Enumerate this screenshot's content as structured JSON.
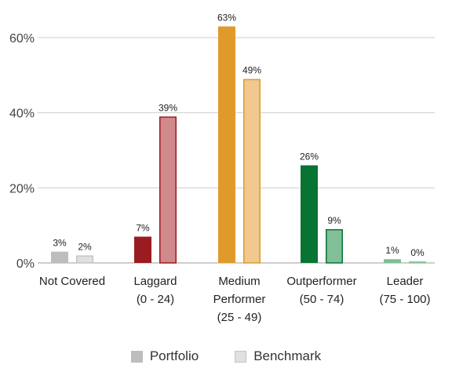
{
  "chart_data": {
    "type": "bar",
    "categories": [
      [
        "Not Covered"
      ],
      [
        "Laggard",
        "(0 - 24)"
      ],
      [
        "Medium",
        "Performer",
        "(25 - 49)"
      ],
      [
        "Outperformer",
        "(50 - 74)"
      ],
      [
        "Leader",
        "(75 - 100)"
      ]
    ],
    "series": [
      {
        "name": "Portfolio",
        "values": [
          3,
          7,
          63,
          26,
          1
        ]
      },
      {
        "name": "Benchmark",
        "values": [
          2,
          39,
          49,
          9,
          0
        ]
      }
    ],
    "value_labels": [
      [
        "3%",
        "7%",
        "63%",
        "26%",
        "1%"
      ],
      [
        "2%",
        "39%",
        "49%",
        "9%",
        "0%"
      ]
    ],
    "y_ticks": [
      0,
      20,
      40,
      60
    ],
    "y_tick_labels": [
      "0%",
      "20%",
      "40%",
      "60%"
    ],
    "ylim": [
      0,
      66
    ],
    "grid": true,
    "legend_position": "bottom",
    "colors": {
      "portfolio": [
        "#bdbdbd",
        "#9b1c20",
        "#e09a2a",
        "#087434",
        "#7fbf95"
      ],
      "benchmark_fill": [
        "#e0e0e0",
        "#d08a8b",
        "#f0c890",
        "#80bf98",
        "#a6d4b4"
      ],
      "benchmark_stroke": [
        "#c4c4c4",
        "#9b1c20",
        "#e09a2a",
        "#087434",
        "#8cc7a0"
      ]
    }
  },
  "legend": {
    "items": [
      {
        "label": "Portfolio",
        "color": "#bdbdbd",
        "border": "#bdbdbd"
      },
      {
        "label": "Benchmark",
        "color": "#e0e0e0",
        "border": "#c4c4c4"
      }
    ]
  }
}
